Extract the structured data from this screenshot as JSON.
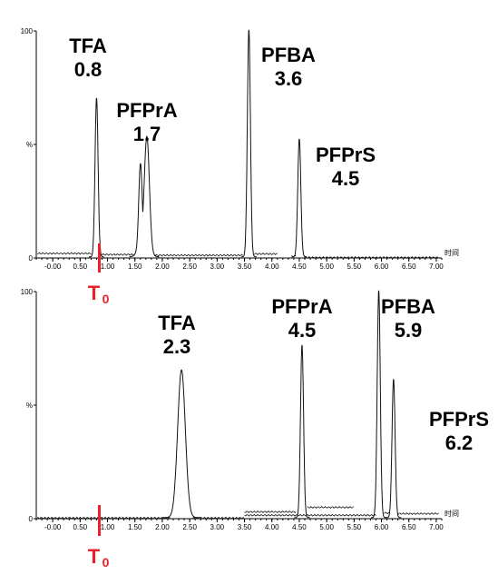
{
  "chart_data": [
    {
      "type": "line",
      "xlabel": "时间",
      "ylabel": "%",
      "xlim": [
        -0.3,
        7.1
      ],
      "ylim": [
        0,
        100
      ],
      "x_ticks": [
        "-0.00",
        "0.50",
        "1.00",
        "1.50",
        "2.00",
        "2.50",
        "3.00",
        "3.50",
        "4.00",
        "4.50",
        "5.00",
        "5.50",
        "6.00",
        "6.50",
        "7.00"
      ],
      "y_ticks": [
        "0",
        "%",
        "100"
      ],
      "t0_marker": {
        "x": 0.85,
        "label": "T",
        "subscript": "0"
      },
      "peaks": [
        {
          "name": "TFA",
          "rt": "0.8",
          "x": 0.8,
          "height": 70
        },
        {
          "name": "PFPrA",
          "rt": "1.7",
          "x": 1.72,
          "height": 47,
          "shoulder_x": 1.6,
          "shoulder_height": 35
        },
        {
          "name": "PFBA",
          "rt": "3.6",
          "x": 3.58,
          "height": 100
        },
        {
          "name": "PFPrS",
          "rt": "4.5",
          "x": 4.5,
          "height": 52
        }
      ]
    },
    {
      "type": "line",
      "xlabel": "时间",
      "ylabel": "%",
      "xlim": [
        -0.3,
        7.1
      ],
      "ylim": [
        0,
        100
      ],
      "x_ticks": [
        "-0.00",
        "0.50",
        "1.00",
        "1.50",
        "2.00",
        "2.50",
        "3.00",
        "3.50",
        "4.00",
        "4.50",
        "5.00",
        "5.50",
        "6.00",
        "6.50",
        "7.00"
      ],
      "y_ticks": [
        "0",
        "%",
        "100"
      ],
      "t0_marker": {
        "x": 0.85,
        "label": "T",
        "subscript": "0"
      },
      "peaks": [
        {
          "name": "TFA",
          "rt": "2.3",
          "x": 2.35,
          "height": 65
        },
        {
          "name": "PFPrA",
          "rt": "4.5",
          "x": 4.55,
          "height": 76
        },
        {
          "name": "PFBA",
          "rt": "5.9",
          "x": 5.95,
          "height": 100
        },
        {
          "name": "PFPrS",
          "rt": "6.2",
          "x": 6.22,
          "height": 61
        }
      ]
    }
  ],
  "colors": {
    "trace": "#111111",
    "t0_marker": "#e8202a"
  }
}
